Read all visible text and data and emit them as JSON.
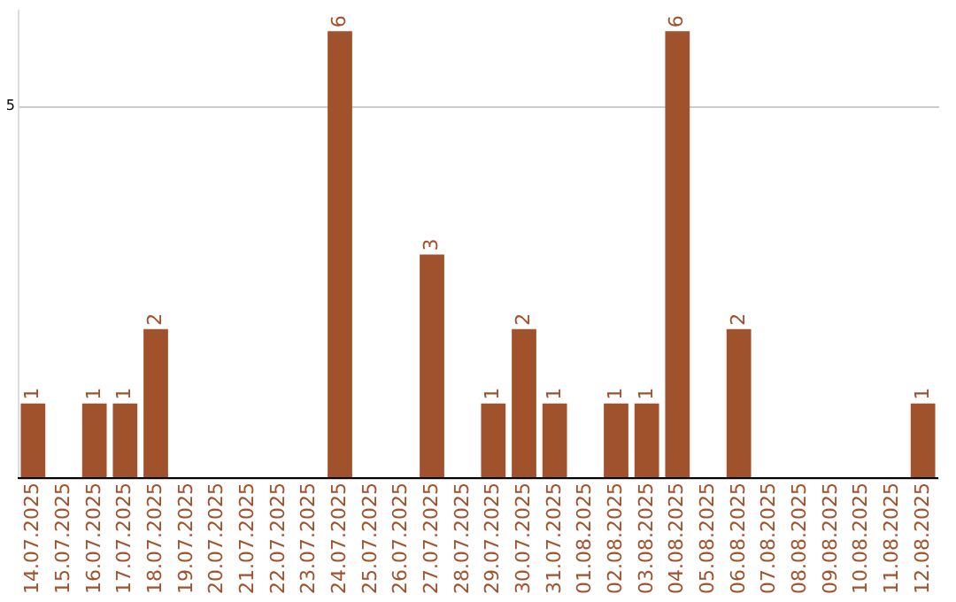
{
  "chart_data": {
    "type": "bar",
    "categories": [
      "14.07.2025",
      "15.07.2025",
      "16.07.2025",
      "17.07.2025",
      "18.07.2025",
      "19.07.2025",
      "20.07.2025",
      "21.07.2025",
      "22.07.2025",
      "23.07.2025",
      "24.07.2025",
      "25.07.2025",
      "26.07.2025",
      "27.07.2025",
      "28.07.2025",
      "29.07.2025",
      "30.07.2025",
      "31.07.2025",
      "01.08.2025",
      "02.08.2025",
      "03.08.2025",
      "04.08.2025",
      "05.08.2025",
      "06.08.2025",
      "07.08.2025",
      "08.08.2025",
      "09.08.2025",
      "10.08.2025",
      "11.08.2025",
      "12.08.2025"
    ],
    "values": [
      1,
      0,
      1,
      1,
      2,
      0,
      0,
      0,
      0,
      0,
      6,
      0,
      0,
      3,
      0,
      1,
      2,
      1,
      0,
      1,
      1,
      6,
      0,
      2,
      0,
      0,
      0,
      0,
      0,
      1
    ],
    "value_labels": [
      "1",
      null,
      "1",
      "1",
      "2",
      null,
      null,
      null,
      null,
      null,
      "6",
      null,
      null,
      "3",
      null,
      "1",
      "2",
      "1",
      null,
      "1",
      "1",
      "6",
      null,
      "2",
      null,
      null,
      null,
      null,
      null,
      "1"
    ],
    "color": "#a0522d",
    "ylim": [
      0,
      6.3
    ],
    "yticks": [
      {
        "value": 0,
        "label": null
      },
      5
    ],
    "grid": "y"
  }
}
